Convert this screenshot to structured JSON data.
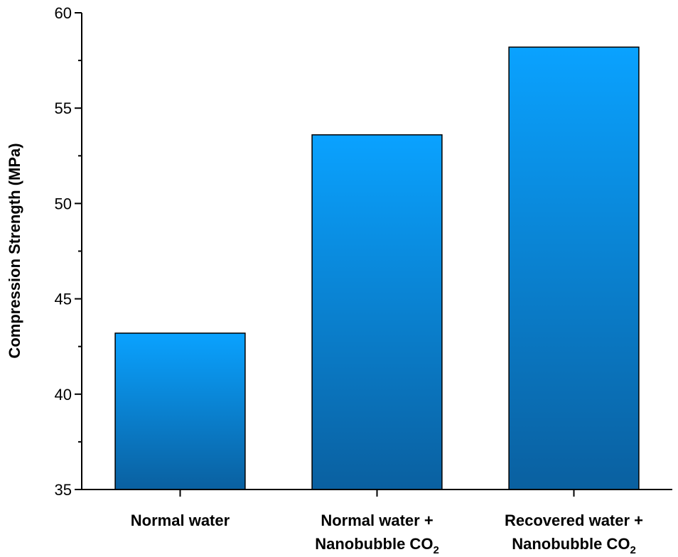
{
  "chart_data": {
    "type": "bar",
    "categories": [
      {
        "line1": "Normal water",
        "line2": "",
        "sub": ""
      },
      {
        "line1": "Normal water +",
        "line2": "Nanobubble CO",
        "sub": "2"
      },
      {
        "line1": "Recovered water +",
        "line2": "Nanobubble CO",
        "sub": "2"
      }
    ],
    "values": [
      43.2,
      53.6,
      58.2
    ],
    "ylabel": "Compression Strength (MPa)",
    "xlabel": "",
    "title": "",
    "ylim": [
      35,
      60
    ],
    "yticks": [
      35,
      40,
      45,
      50,
      55,
      60
    ],
    "grid": false,
    "legend": "none",
    "colors": {
      "bar_top": "#0aa2ff",
      "bar_bottom": "#0a60a0",
      "bar_edge": "#000000",
      "axis": "#000000"
    }
  }
}
